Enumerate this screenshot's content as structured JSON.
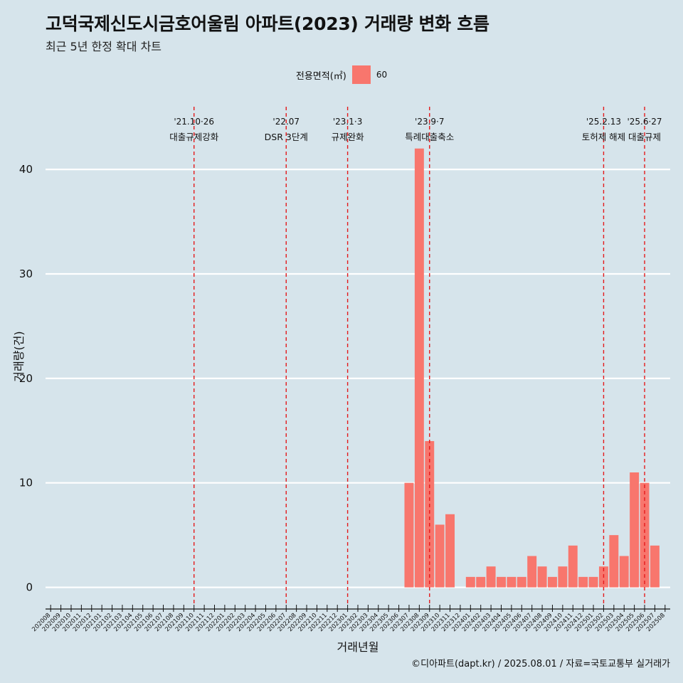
{
  "title": "고덕국제신도시금호어울림 아파트(2023) 거래량 변화 흐름",
  "subtitle": "최근 5년 한정 확대 차트",
  "legend": {
    "title": "전용면적(㎡)",
    "items": [
      {
        "label": "60",
        "color": "#f8766d"
      }
    ]
  },
  "caption": "©디아파트(dapt.kr) / 2025.08.01 / 자료=국토교통부 실거래가",
  "colors": {
    "background": "#d6e4eb",
    "bar": "#f8766d",
    "event_line": "#e41a1c",
    "grid": "#ffffff"
  },
  "chart_data": {
    "type": "bar",
    "xlabel": "거래년월",
    "ylabel": "거래량(건)",
    "ylim": [
      -1.8,
      46
    ],
    "yticks": [
      0,
      10,
      20,
      30,
      40
    ],
    "grid": "horizontal",
    "legend_position": "top",
    "categories": [
      "202008",
      "202009",
      "202010",
      "202011",
      "202012",
      "202101",
      "202102",
      "202103",
      "202104",
      "202105",
      "202106",
      "202107",
      "202108",
      "202109",
      "202110",
      "202111",
      "202112",
      "202201",
      "202202",
      "202203",
      "202204",
      "202205",
      "202206",
      "202207",
      "202208",
      "202209",
      "202210",
      "202211",
      "202212",
      "202301",
      "202302",
      "202303",
      "202304",
      "202305",
      "202306",
      "202307",
      "202308",
      "202309",
      "202310",
      "202311",
      "202312",
      "202401",
      "202402",
      "202403",
      "202404",
      "202405",
      "202406",
      "202407",
      "202408",
      "202409",
      "202410",
      "202411",
      "202412",
      "202501",
      "202502",
      "202503",
      "202504",
      "202505",
      "202506",
      "202507",
      "202508"
    ],
    "series": [
      {
        "name": "60",
        "color": "#f8766d",
        "values": [
          0,
          0,
          0,
          0,
          0,
          0,
          0,
          0,
          0,
          0,
          0,
          0,
          0,
          0,
          0,
          0,
          0,
          0,
          0,
          0,
          0,
          0,
          0,
          0,
          0,
          0,
          0,
          0,
          0,
          0,
          0,
          0,
          0,
          0,
          0,
          10,
          42,
          14,
          6,
          7,
          0,
          1,
          1,
          2,
          1,
          1,
          1,
          3,
          2,
          1,
          2,
          4,
          1,
          1,
          2,
          5,
          3,
          11,
          10,
          4,
          0
        ]
      }
    ],
    "events": [
      {
        "label_date": "'21.10·26",
        "label_text": "대출규제강화",
        "x": "202110"
      },
      {
        "label_date": "'22.07",
        "label_text": "DSR 3단계",
        "x": "202207"
      },
      {
        "label_date": "'23.1·3",
        "label_text": "규제완화",
        "x": "202301"
      },
      {
        "label_date": "'23.9·7",
        "label_text": "특례대출축소",
        "x": "202309"
      },
      {
        "label_date": "'25.2.13",
        "label_text": "토허제 해제",
        "x": "202502"
      },
      {
        "label_date": "'25.6·27",
        "label_text": "대출규제",
        "x": "202506"
      }
    ]
  }
}
